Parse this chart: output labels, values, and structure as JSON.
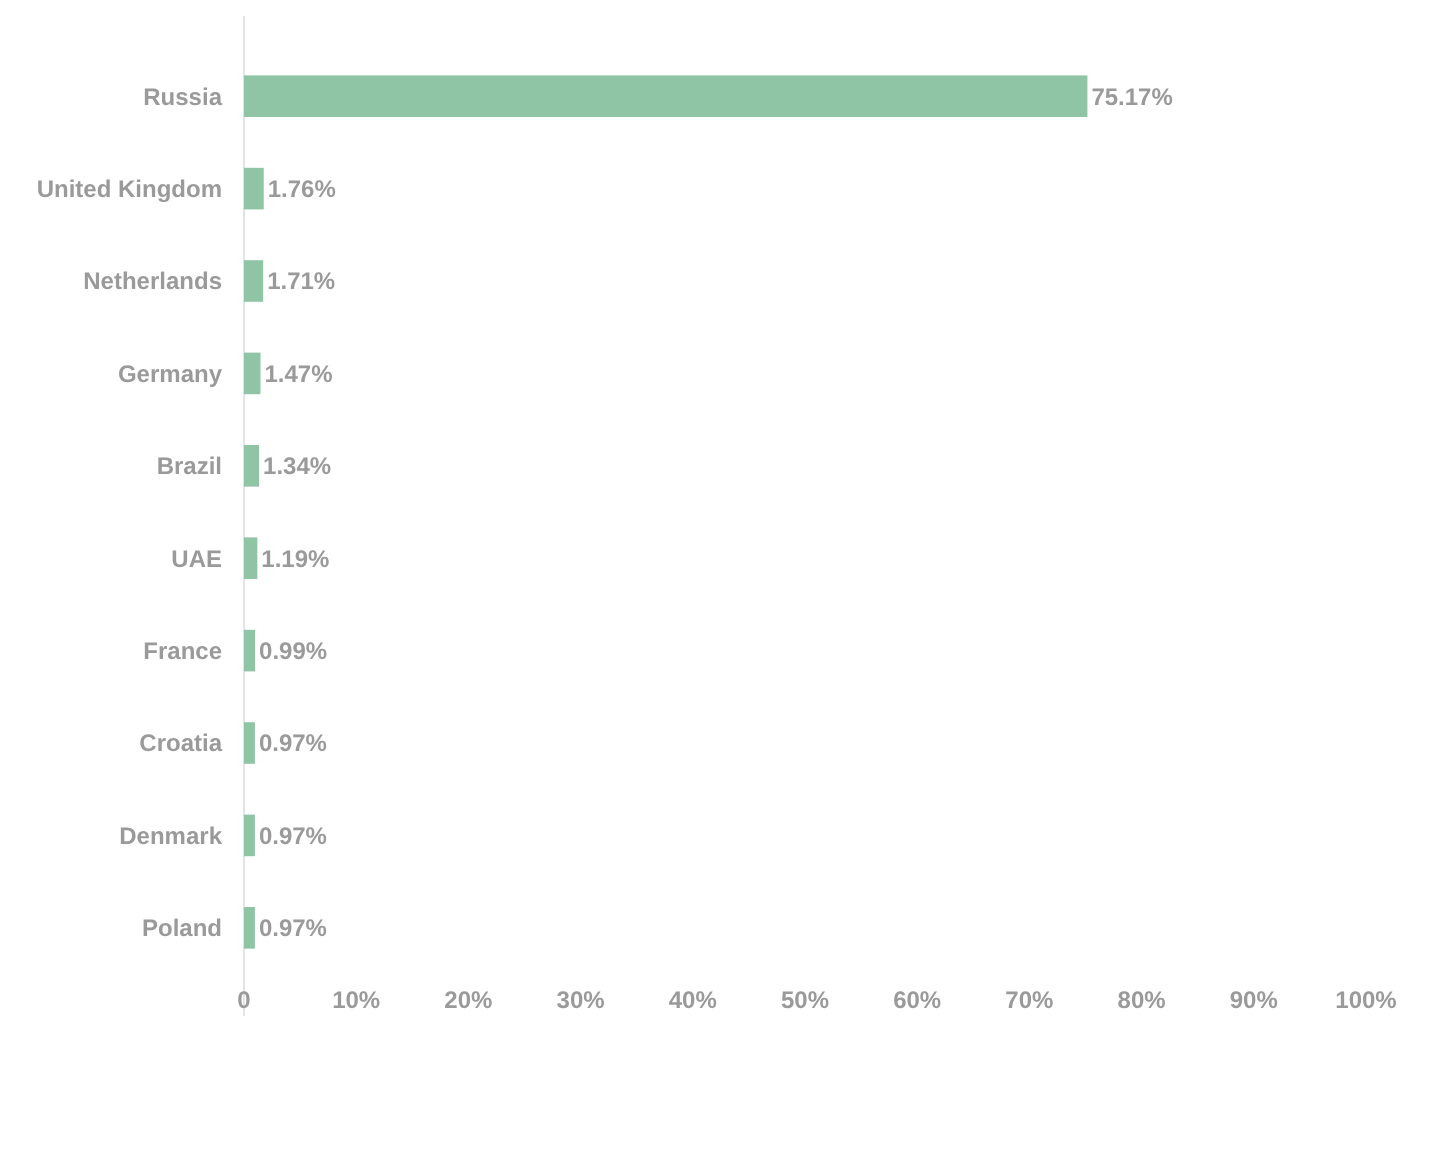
{
  "chart_data": {
    "type": "bar",
    "orientation": "horizontal",
    "categories": [
      "Russia",
      "United Kingdom",
      "Netherlands",
      "Germany",
      "Brazil",
      "UAE",
      "France",
      "Croatia",
      "Denmark",
      "Poland"
    ],
    "values": [
      75.17,
      1.76,
      1.71,
      1.47,
      1.34,
      1.19,
      0.99,
      0.97,
      0.97,
      0.97
    ],
    "value_labels": [
      "75.17%",
      "1.76%",
      "1.71%",
      "1.47%",
      "1.34%",
      "1.19%",
      "0.99%",
      "0.97%",
      "0.97%",
      "0.97%"
    ],
    "color": "#8fc5a5",
    "xlim": [
      0,
      100
    ],
    "xticks": [
      0,
      {
        "value": 10,
        "label": "10%"
      },
      {
        "value": 20,
        "label": "20%"
      },
      {
        "value": 30,
        "label": "30%"
      },
      {
        "value": 40,
        "label": "40%"
      },
      {
        "value": 50,
        "label": "50%"
      },
      {
        "value": 60,
        "label": "60%"
      },
      {
        "value": 70,
        "label": "70%"
      },
      {
        "value": 80,
        "label": "80%"
      },
      {
        "value": 90,
        "label": "90%"
      },
      {
        "value": 100,
        "label": "100%"
      }
    ],
    "grid": false
  }
}
